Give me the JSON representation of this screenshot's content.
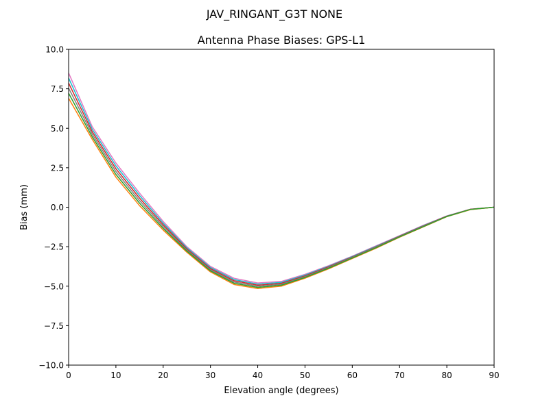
{
  "figure_title": "JAV_RINGANT_G3T NONE",
  "chart_data": {
    "type": "line",
    "title": "Antenna Phase Biases: GPS-L1",
    "xlabel": "Elevation angle (degrees)",
    "ylabel": "Bias (mm)",
    "xlim": [
      0,
      90
    ],
    "ylim": [
      -10,
      10
    ],
    "xticks": [
      0,
      10,
      20,
      30,
      40,
      50,
      60,
      70,
      80,
      90
    ],
    "yticks": [
      -10,
      -7.5,
      -5,
      -2.5,
      0,
      2.5,
      5,
      7.5,
      10
    ],
    "ytick_labels": [
      "−10.0",
      "−7.5",
      "−5.0",
      "−2.5",
      "0.0",
      "2.5",
      "5.0",
      "7.5",
      "10.0"
    ],
    "grid": false,
    "x": [
      0,
      5,
      10,
      15,
      20,
      25,
      30,
      35,
      40,
      45,
      50,
      55,
      60,
      65,
      70,
      75,
      80,
      85,
      90
    ],
    "series": [
      {
        "color": "#e377c2",
        "values": [
          8.5,
          5.1,
          2.8,
          0.9,
          -0.9,
          -2.5,
          -3.75,
          -4.5,
          -4.8,
          -4.7,
          -4.25,
          -3.7,
          -3.1,
          -2.45,
          -1.8,
          -1.15,
          -0.55,
          -0.12,
          0
        ]
      },
      {
        "color": "#17becf",
        "values": [
          8.18,
          4.94,
          2.62,
          0.74,
          -1.01,
          -2.57,
          -3.82,
          -4.58,
          -4.87,
          -4.76,
          -4.3,
          -3.74,
          -3.13,
          -2.48,
          -1.82,
          -1.17,
          -0.56,
          -0.13,
          0
        ]
      },
      {
        "color": "#d62728",
        "values": [
          7.86,
          4.78,
          2.44,
          0.58,
          -1.12,
          -2.64,
          -3.89,
          -4.66,
          -4.94,
          -4.82,
          -4.35,
          -3.78,
          -3.16,
          -2.51,
          -1.84,
          -1.19,
          -0.57,
          -0.13,
          0
        ]
      },
      {
        "color": "#7f7f7f",
        "values": [
          7.54,
          4.62,
          2.26,
          0.42,
          -1.23,
          -2.71,
          -3.96,
          -4.74,
          -5.01,
          -4.88,
          -4.4,
          -3.82,
          -3.19,
          -2.54,
          -1.86,
          -1.21,
          -0.58,
          -0.14,
          0
        ]
      },
      {
        "color": "#ff7f0e",
        "values": [
          6.9,
          4.3,
          1.9,
          0.1,
          -1.45,
          -2.85,
          -4.1,
          -4.9,
          -5.15,
          -5.0,
          -4.5,
          -3.9,
          -3.25,
          -2.6,
          -1.9,
          -1.25,
          -0.6,
          -0.15,
          0
        ]
      },
      {
        "color": "#2ca02c",
        "values": [
          7.22,
          4.46,
          2.08,
          0.26,
          -1.34,
          -2.78,
          -4.03,
          -4.82,
          -5.08,
          -4.94,
          -4.45,
          -3.86,
          -3.22,
          -2.57,
          -1.88,
          -1.23,
          -0.59,
          -0.14,
          0
        ]
      }
    ]
  }
}
